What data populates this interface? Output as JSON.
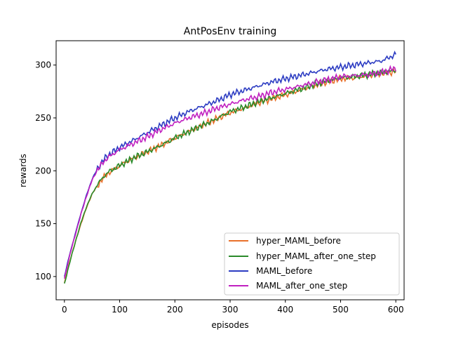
{
  "chart_data": {
    "type": "line",
    "title": "AntPosEnv training",
    "xlabel": "episodes",
    "ylabel": "rewards",
    "xlim": [
      -15,
      615
    ],
    "ylim": [
      78,
      323
    ],
    "xticks": [
      0,
      100,
      200,
      300,
      400,
      500,
      600
    ],
    "yticks": [
      100,
      150,
      200,
      250,
      300
    ],
    "grid": false,
    "legend_position": "lower-right",
    "series": [
      {
        "name": "hyper_MAML_before",
        "color": "#e8702a",
        "points": [
          [
            0,
            94
          ],
          [
            10,
            115
          ],
          [
            20,
            133
          ],
          [
            30,
            150
          ],
          [
            40,
            165
          ],
          [
            50,
            178
          ],
          [
            60,
            186
          ],
          [
            70,
            193
          ],
          [
            80,
            198
          ],
          [
            100,
            205
          ],
          [
            125,
            212
          ],
          [
            150,
            218
          ],
          [
            175,
            224
          ],
          [
            200,
            231
          ],
          [
            225,
            237
          ],
          [
            250,
            243
          ],
          [
            275,
            249
          ],
          [
            300,
            255
          ],
          [
            325,
            259
          ],
          [
            350,
            264
          ],
          [
            375,
            268
          ],
          [
            400,
            272
          ],
          [
            425,
            276
          ],
          [
            450,
            280
          ],
          [
            475,
            284
          ],
          [
            500,
            287
          ],
          [
            525,
            288
          ],
          [
            550,
            290
          ],
          [
            575,
            292
          ],
          [
            600,
            294
          ]
        ]
      },
      {
        "name": "hyper_MAML_after_one_step",
        "color": "#2a8a2a",
        "points": [
          [
            0,
            93
          ],
          [
            10,
            114
          ],
          [
            20,
            133
          ],
          [
            30,
            151
          ],
          [
            40,
            166
          ],
          [
            50,
            178
          ],
          [
            60,
            187
          ],
          [
            70,
            194
          ],
          [
            80,
            199
          ],
          [
            100,
            205
          ],
          [
            125,
            212
          ],
          [
            150,
            218
          ],
          [
            175,
            224
          ],
          [
            200,
            231
          ],
          [
            225,
            237
          ],
          [
            250,
            243
          ],
          [
            275,
            249
          ],
          [
            300,
            256
          ],
          [
            325,
            260
          ],
          [
            350,
            265
          ],
          [
            375,
            269
          ],
          [
            400,
            273
          ],
          [
            425,
            277
          ],
          [
            450,
            281
          ],
          [
            475,
            285
          ],
          [
            500,
            288
          ],
          [
            525,
            289
          ],
          [
            550,
            291
          ],
          [
            575,
            293
          ],
          [
            600,
            295
          ]
        ]
      },
      {
        "name": "MAML_before",
        "color": "#2b3bc2",
        "points": [
          [
            0,
            100
          ],
          [
            10,
            122
          ],
          [
            20,
            141
          ],
          [
            30,
            160
          ],
          [
            40,
            177
          ],
          [
            50,
            192
          ],
          [
            60,
            202
          ],
          [
            70,
            210
          ],
          [
            80,
            215
          ],
          [
            100,
            222
          ],
          [
            125,
            229
          ],
          [
            150,
            236
          ],
          [
            175,
            243
          ],
          [
            200,
            250
          ],
          [
            225,
            256
          ],
          [
            250,
            261
          ],
          [
            275,
            266
          ],
          [
            300,
            272
          ],
          [
            325,
            276
          ],
          [
            350,
            280
          ],
          [
            375,
            284
          ],
          [
            400,
            287
          ],
          [
            425,
            290
          ],
          [
            450,
            293
          ],
          [
            475,
            296
          ],
          [
            500,
            298
          ],
          [
            525,
            300
          ],
          [
            550,
            302
          ],
          [
            575,
            304
          ],
          [
            600,
            310
          ]
        ]
      },
      {
        "name": "MAML_after_one_step",
        "color": "#c020c0",
        "points": [
          [
            0,
            98
          ],
          [
            10,
            121
          ],
          [
            20,
            140
          ],
          [
            30,
            159
          ],
          [
            40,
            176
          ],
          [
            50,
            191
          ],
          [
            60,
            201
          ],
          [
            70,
            208
          ],
          [
            80,
            213
          ],
          [
            100,
            220
          ],
          [
            125,
            226
          ],
          [
            150,
            232
          ],
          [
            175,
            239
          ],
          [
            200,
            245
          ],
          [
            225,
            250
          ],
          [
            250,
            254
          ],
          [
            275,
            259
          ],
          [
            300,
            263
          ],
          [
            325,
            267
          ],
          [
            350,
            270
          ],
          [
            375,
            274
          ],
          [
            400,
            277
          ],
          [
            425,
            280
          ],
          [
            450,
            283
          ],
          [
            475,
            286
          ],
          [
            500,
            289
          ],
          [
            525,
            290
          ],
          [
            550,
            291
          ],
          [
            575,
            293
          ],
          [
            600,
            297
          ]
        ]
      }
    ]
  },
  "colors": {
    "background": "#ffffff",
    "axes": "#000000",
    "legend_border": "#cccccc"
  }
}
